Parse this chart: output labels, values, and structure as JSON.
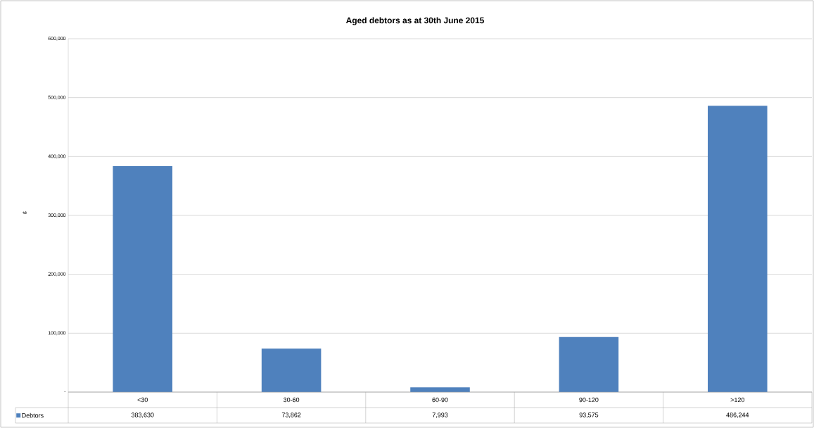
{
  "chart_data": {
    "type": "bar",
    "title": "Aged debtors as at 30th June 2015",
    "ylabel": "£",
    "categories": [
      "<30",
      "30-60",
      "60-90",
      "90-120",
      ">120"
    ],
    "series": [
      {
        "name": "Debtors",
        "color": "#4f81bd",
        "values": [
          383630,
          73862,
          7993,
          93575,
          486244
        ],
        "value_labels": [
          "383,630",
          "73,862",
          "7,993",
          "93,575",
          "486,244"
        ]
      }
    ],
    "ylim": [
      0,
      600000
    ],
    "yticks": [
      {
        "value": 0,
        "label": "-"
      },
      {
        "value": 100000,
        "label": "100,000"
      },
      {
        "value": 200000,
        "label": "200,000"
      },
      {
        "value": 300000,
        "label": "300,000"
      },
      {
        "value": 400000,
        "label": "400,000"
      },
      {
        "value": 500000,
        "label": "500,000"
      },
      {
        "value": 600000,
        "label": "600,000"
      }
    ],
    "grid": "y",
    "legend": "bottom"
  }
}
